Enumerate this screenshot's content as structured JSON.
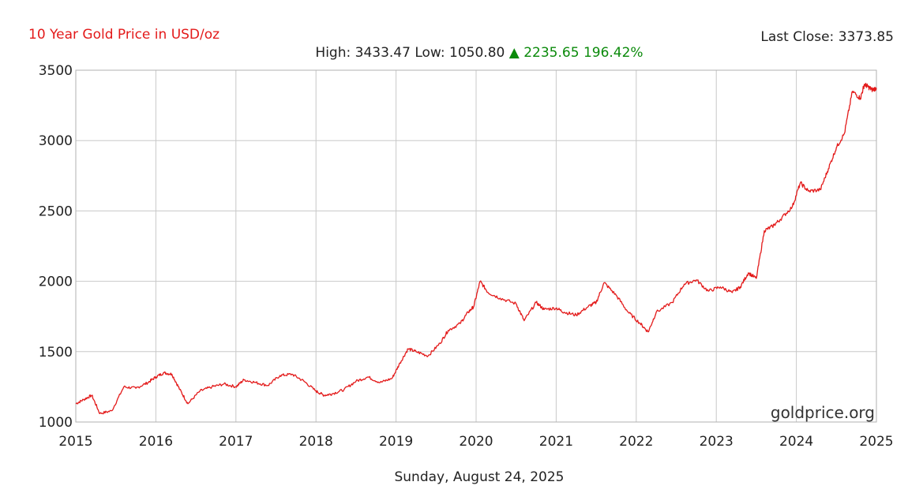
{
  "header": {
    "title": "10 Year Gold Price in USD/oz",
    "last_close_label": "Last Close:",
    "last_close_value": "3373.85",
    "high_label": "High:",
    "high_value": "3433.47",
    "low_label": "Low:",
    "low_value": "1050.80",
    "change_arrow": "▲",
    "change_value": "2235.65",
    "change_pct": "196.42%",
    "change_color": "#0a8a0a"
  },
  "footer": {
    "date": "Sunday, August 24, 2025"
  },
  "watermark": "goldprice.org",
  "chart_data": {
    "type": "line",
    "title": "10 Year Gold Price in USD/oz",
    "xlabel": "",
    "ylabel": "",
    "xlim": [
      2015,
      2025
    ],
    "ylim": [
      1000,
      3500
    ],
    "x_ticks": [
      "2015",
      "2016",
      "2017",
      "2018",
      "2019",
      "2020",
      "2021",
      "2022",
      "2023",
      "2024",
      "2025"
    ],
    "y_ticks": [
      "1000",
      "1500",
      "2000",
      "2500",
      "3000",
      "3500"
    ],
    "grid": true,
    "line_color": "#e31a1a",
    "series": [
      {
        "name": "",
        "x": [
          2015.0,
          2015.1,
          2015.2,
          2015.3,
          2015.45,
          2015.6,
          2015.75,
          2015.9,
          2016.0,
          2016.1,
          2016.2,
          2016.3,
          2016.4,
          2016.55,
          2016.7,
          2016.85,
          2017.0,
          2017.1,
          2017.25,
          2017.4,
          2017.55,
          2017.7,
          2017.85,
          2018.0,
          2018.1,
          2018.2,
          2018.35,
          2018.5,
          2018.65,
          2018.8,
          2018.95,
          2019.05,
          2019.15,
          2019.25,
          2019.4,
          2019.55,
          2019.65,
          2019.8,
          2019.9,
          2019.97,
          2020.05,
          2020.15,
          2020.3,
          2020.5,
          2020.6,
          2020.75,
          2020.85,
          2021.0,
          2021.1,
          2021.25,
          2021.4,
          2021.5,
          2021.6,
          2021.75,
          2021.9,
          2022.05,
          2022.15,
          2022.25,
          2022.45,
          2022.6,
          2022.75,
          2022.9,
          2023.05,
          2023.2,
          2023.3,
          2023.4,
          2023.5,
          2023.6,
          2023.7,
          2023.8,
          2023.95,
          2024.05,
          2024.15,
          2024.3,
          2024.4,
          2024.5,
          2024.6,
          2024.7,
          2024.8,
          2024.85,
          2024.9,
          2024.95,
          2025.0
        ],
        "values": [
          1130,
          1160,
          1190,
          1060,
          1080,
          1250,
          1240,
          1280,
          1320,
          1350,
          1340,
          1230,
          1130,
          1220,
          1250,
          1270,
          1250,
          1300,
          1280,
          1260,
          1330,
          1340,
          1290,
          1220,
          1190,
          1200,
          1230,
          1290,
          1320,
          1280,
          1310,
          1420,
          1520,
          1500,
          1470,
          1560,
          1650,
          1700,
          1780,
          1820,
          2000,
          1920,
          1880,
          1840,
          1720,
          1850,
          1800,
          1810,
          1780,
          1760,
          1820,
          1850,
          1990,
          1900,
          1780,
          1700,
          1640,
          1780,
          1850,
          1980,
          2010,
          1930,
          1960,
          1920,
          1960,
          2060,
          2020,
          2360,
          2390,
          2440,
          2530,
          2700,
          2640,
          2650,
          2800,
          2950,
          3050,
          3350,
          3300,
          3400,
          3380,
          3360,
          3373.85
        ]
      }
    ]
  }
}
